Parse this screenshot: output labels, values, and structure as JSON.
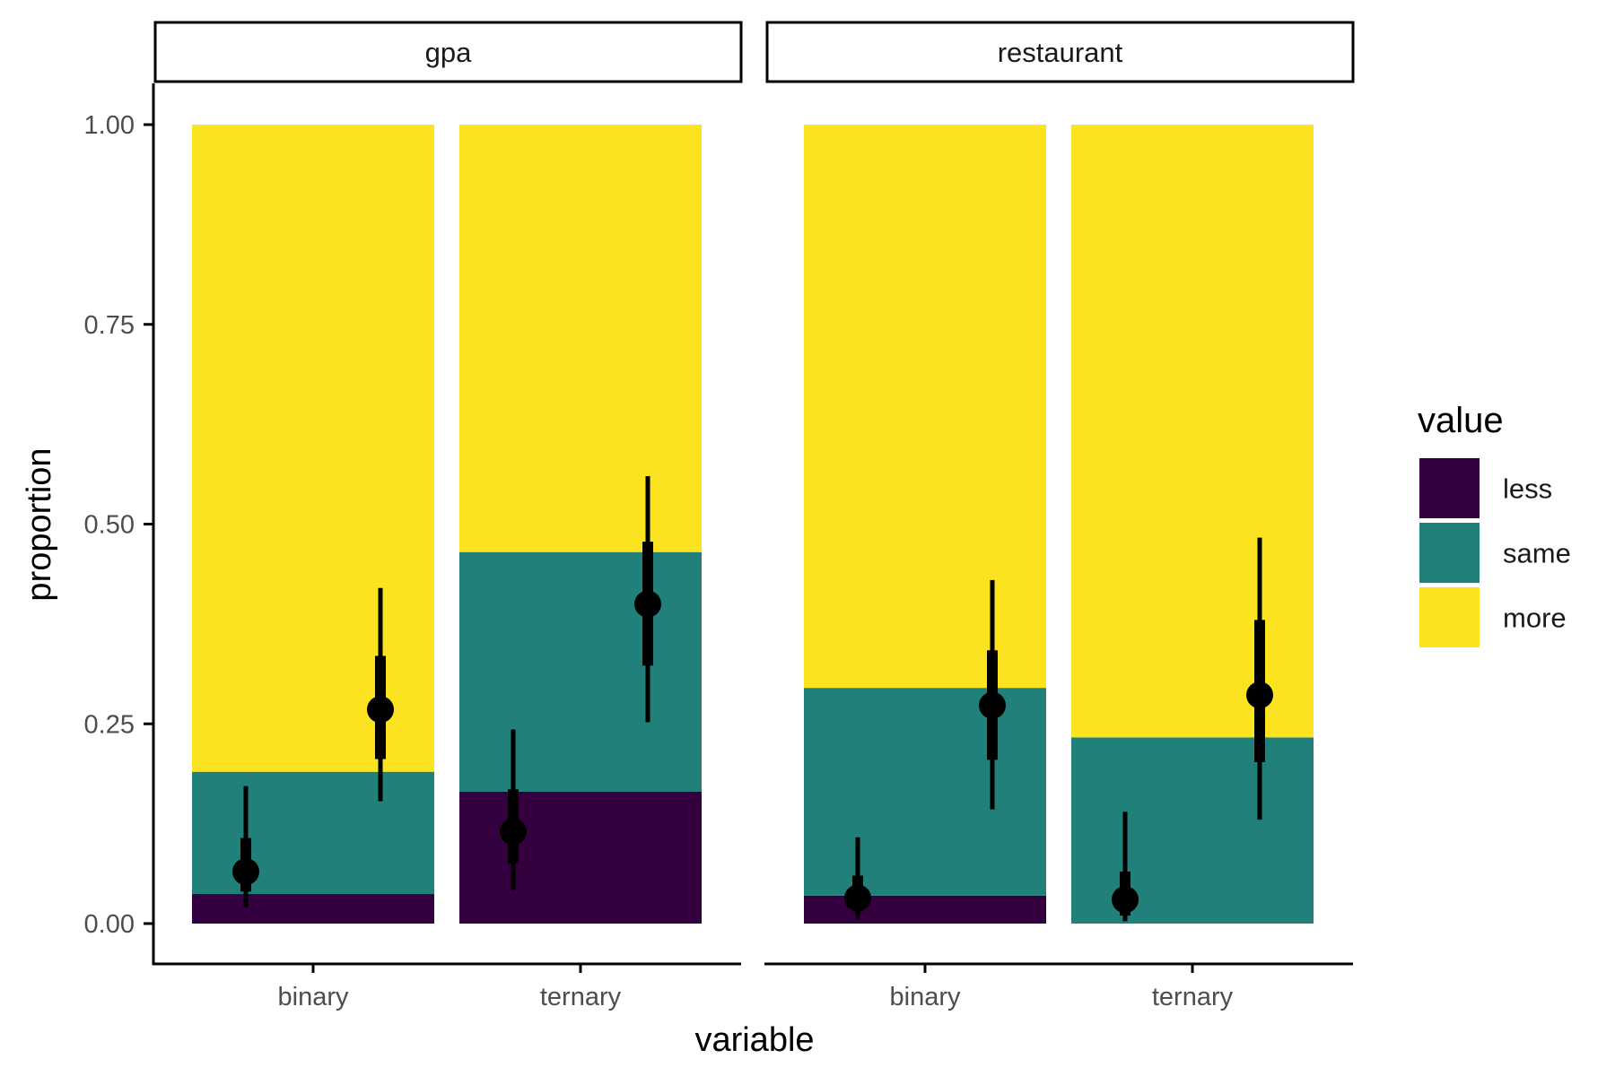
{
  "colors": {
    "less": "#35003f",
    "same": "#21817a",
    "more": "#fbe321",
    "ink": "#000000"
  },
  "chart_data": {
    "type": "bar",
    "stacked": true,
    "facets": [
      "gpa",
      "restaurant"
    ],
    "categories": [
      "binary",
      "ternary"
    ],
    "xlabel": "variable",
    "ylabel": "proportion",
    "ylim": [
      0,
      1
    ],
    "yticks": [
      "0.00",
      "0.25",
      "0.50",
      "0.75",
      "1.00"
    ],
    "legend": {
      "title": "value",
      "position": "right",
      "items": [
        "less",
        "same",
        "more"
      ]
    },
    "bars": {
      "gpa": {
        "binary": {
          "less": 0.037,
          "same": 0.153,
          "more": 0.81
        },
        "ternary": {
          "less": 0.165,
          "same": 0.3,
          "more": 0.535
        }
      },
      "restaurant": {
        "binary": {
          "less": 0.035,
          "same": 0.26,
          "more": 0.705
        },
        "ternary": {
          "less": 0.0,
          "same": 0.233,
          "more": 0.767
        }
      }
    },
    "estimates": {
      "gpa": {
        "binary": [
          {
            "value": "less",
            "estimate": 0.065,
            "inner": [
              0.04,
              0.107
            ],
            "outer": [
              0.02,
              0.172
            ]
          },
          {
            "value": "same",
            "estimate": 0.268,
            "inner": [
              0.206,
              0.335
            ],
            "outer": [
              0.153,
              0.42
            ]
          }
        ],
        "ternary": [
          {
            "value": "less",
            "estimate": 0.115,
            "inner": [
              0.075,
              0.168
            ],
            "outer": [
              0.042,
              0.243
            ]
          },
          {
            "value": "same",
            "estimate": 0.4,
            "inner": [
              0.323,
              0.478
            ],
            "outer": [
              0.252,
              0.56
            ]
          }
        ]
      },
      "restaurant": {
        "binary": [
          {
            "value": "less",
            "estimate": 0.032,
            "inner": [
              0.015,
              0.06
            ],
            "outer": [
              0.005,
              0.108
            ]
          },
          {
            "value": "same",
            "estimate": 0.273,
            "inner": [
              0.205,
              0.342
            ],
            "outer": [
              0.143,
              0.43
            ]
          }
        ],
        "ternary": [
          {
            "value": "less",
            "estimate": 0.03,
            "inner": [
              0.01,
              0.065
            ],
            "outer": [
              0.003,
              0.14
            ]
          },
          {
            "value": "same",
            "estimate": 0.286,
            "inner": [
              0.202,
              0.38
            ],
            "outer": [
              0.13,
              0.483
            ]
          }
        ]
      }
    }
  }
}
